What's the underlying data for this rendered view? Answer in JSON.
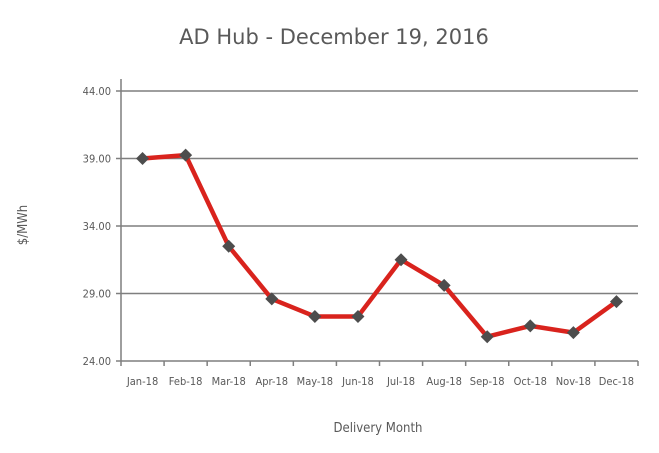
{
  "chart_data": {
    "type": "line",
    "title": "AD Hub - December  19, 2016",
    "xlabel": "Delivery Month",
    "ylabel": "$/MWh",
    "categories": [
      "Jan-18",
      "Feb-18",
      "Mar-18",
      "Apr-18",
      "May-18",
      "Jun-18",
      "Jul-18",
      "Aug-18",
      "Sep-18",
      "Oct-18",
      "Nov-18",
      "Dec-18"
    ],
    "series": [
      {
        "values": [
          39.0,
          39.25,
          32.5,
          28.6,
          27.3,
          27.3,
          31.5,
          29.6,
          25.8,
          26.6,
          26.1,
          28.4
        ]
      }
    ],
    "ylim": [
      24,
      44
    ],
    "yticks": [
      24,
      29,
      34,
      39,
      44
    ],
    "ytick_labels": [
      "24.00",
      "29.00",
      "34.00",
      "39.00",
      "44.00"
    ],
    "grid": true,
    "colors": {
      "line": "#d9231d",
      "marker": "#4d4d4d",
      "grid": "#7f7f7f",
      "axis": "#7f7f7f",
      "text": "#595959"
    }
  }
}
